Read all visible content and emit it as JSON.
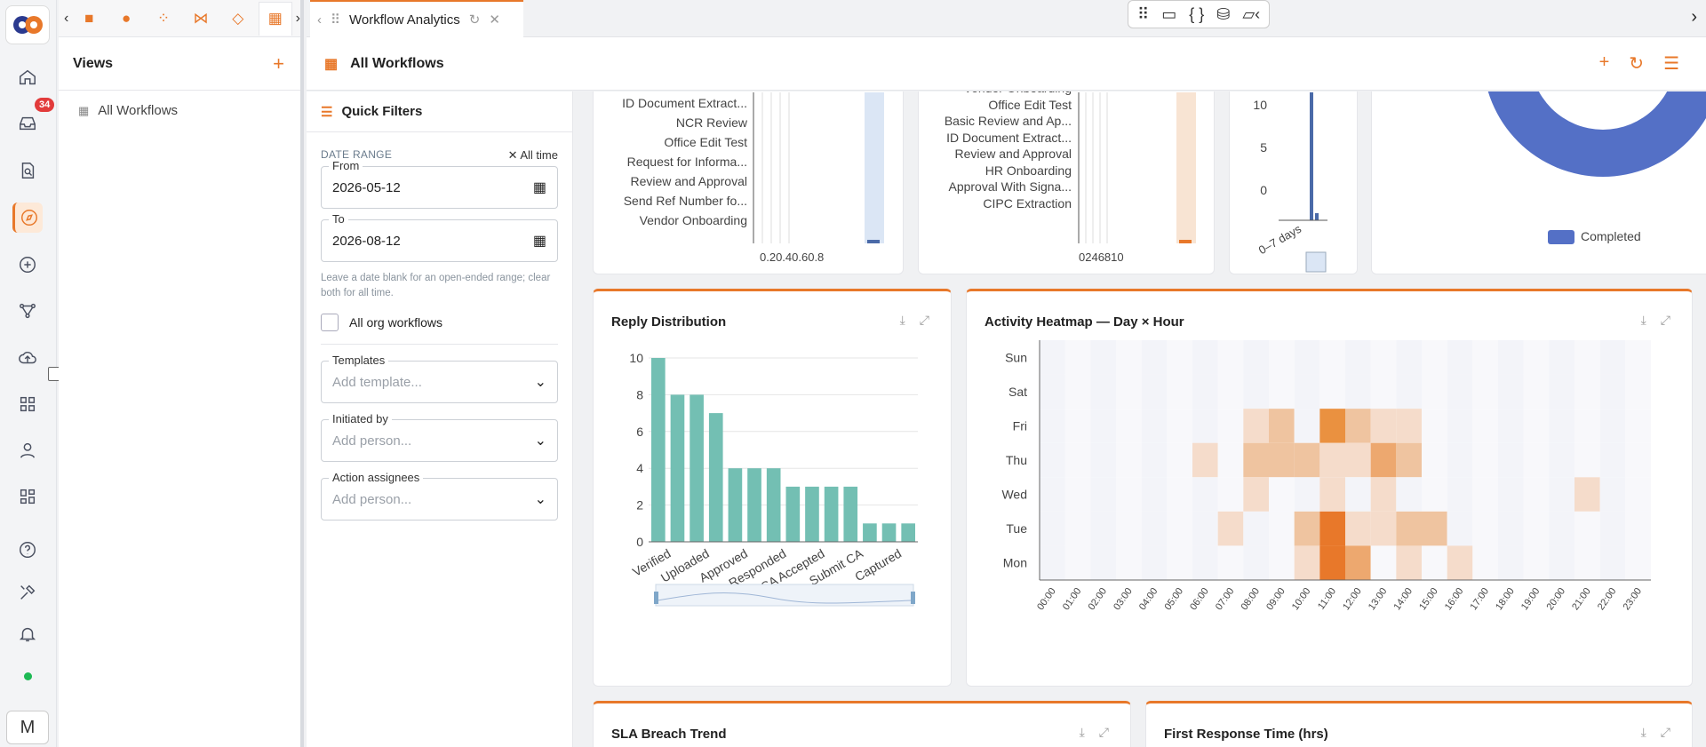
{
  "rail": {
    "badge_count": "34",
    "avatar_initial": "M"
  },
  "views": {
    "title": "Views",
    "items": [
      {
        "label": "All Workflows"
      }
    ]
  },
  "tab": {
    "label": "Workflow Analytics"
  },
  "page": {
    "title": "All Workflows"
  },
  "filters": {
    "title": "Quick Filters",
    "date_range_label": "DATE RANGE",
    "all_time_label": "All time",
    "from_label": "From",
    "from_value": "2026-05-12",
    "to_label": "To",
    "to_value": "2026-08-12",
    "hint": "Leave a date blank for an open-ended range; clear both for all time.",
    "all_org_label": "All org workflows",
    "templates_label": "Templates",
    "templates_placeholder": "Add template...",
    "initiated_label": "Initiated by",
    "initiated_placeholder": "Add person...",
    "assignees_label": "Action assignees",
    "assignees_placeholder": "Add person..."
  },
  "top_charts": {
    "left_labels": [
      "ID Document Extract...",
      "NCR Review",
      "Office Edit Test",
      "Request for Informa...",
      "Review and Approval",
      "Send Ref Number fo...",
      "Vendor Onboarding"
    ],
    "left_ticks": "0.20.40.60.8",
    "mid_labels": [
      "Vendor Onboarding",
      "Office Edit Test",
      "Basic Review and Ap...",
      "ID Document Extract...",
      "Review and Approval",
      "HR Onboarding",
      "Approval With Signa...",
      "CIPC Extraction"
    ],
    "mid_ticks": "0246810",
    "small_ticks": [
      "10",
      "5",
      "0"
    ],
    "small_cat": "0–7 days",
    "legend_completed": "Completed"
  },
  "reply": {
    "title": "Reply Distribution",
    "y_ticks": [
      "10",
      "8",
      "6",
      "4",
      "2",
      "0"
    ],
    "x_labels": [
      "Verified",
      "Uploaded",
      "Approved",
      "Responded",
      "CA Accepted",
      "Submit CA",
      "Captured"
    ]
  },
  "heatmap": {
    "title": "Activity Heatmap — Day × Hour",
    "days": [
      "Sun",
      "Sat",
      "Fri",
      "Thu",
      "Wed",
      "Tue",
      "Mon"
    ],
    "hours": [
      "00:00",
      "01:00",
      "02:00",
      "03:00",
      "04:00",
      "05:00",
      "06:00",
      "07:00",
      "08:00",
      "09:00",
      "10:00",
      "11:00",
      "12:00",
      "13:00",
      "14:00",
      "15:00",
      "16:00",
      "17:00",
      "18:00",
      "19:00",
      "20:00",
      "21:00",
      "22:00",
      "23:00"
    ]
  },
  "sla": {
    "title": "SLA Breach Trend"
  },
  "frt": {
    "title": "First Response Time (hrs)"
  },
  "chart_data": [
    {
      "type": "bar",
      "title": "Reply Distribution",
      "values": [
        10,
        8,
        8,
        7,
        4,
        4,
        4,
        3,
        3,
        3,
        3,
        1,
        1,
        1
      ],
      "ylim": [
        0,
        10
      ],
      "color": "#73bfb3"
    },
    {
      "type": "heatmap",
      "title": "Activity Heatmap — Day × Hour",
      "rows": [
        "Sun",
        "Sat",
        "Fri",
        "Thu",
        "Wed",
        "Tue",
        "Mon"
      ],
      "values": [
        [
          0,
          0,
          0,
          0,
          0,
          0,
          0,
          0,
          0,
          0,
          0,
          0,
          0,
          0,
          0,
          0,
          0,
          0,
          0,
          0,
          0,
          0,
          0,
          0
        ],
        [
          0,
          0,
          0,
          0,
          0,
          0,
          0,
          0,
          0,
          0,
          0,
          0,
          0,
          0,
          0,
          0,
          0,
          0,
          0,
          0,
          0,
          0,
          0,
          0
        ],
        [
          0,
          0,
          0,
          0,
          0,
          0,
          0,
          0,
          1,
          2,
          0,
          4,
          2,
          1,
          1,
          0,
          0,
          0,
          0,
          0,
          0,
          0,
          0,
          0
        ],
        [
          0,
          0,
          0,
          0,
          0,
          0,
          1,
          0,
          2,
          2,
          2,
          1,
          1,
          3,
          2,
          0,
          0,
          0,
          0,
          0,
          0,
          0,
          0,
          0
        ],
        [
          0,
          0,
          0,
          0,
          0,
          0,
          0,
          0,
          1,
          0,
          0,
          1,
          0,
          1,
          0,
          0,
          0,
          0,
          0,
          0,
          0,
          1,
          0,
          0
        ],
        [
          0,
          0,
          0,
          0,
          0,
          0,
          0,
          1,
          0,
          0,
          2,
          5,
          1,
          1,
          2,
          2,
          0,
          0,
          0,
          0,
          0,
          0,
          0,
          0
        ],
        [
          0,
          0,
          0,
          0,
          0,
          0,
          0,
          0,
          0,
          0,
          1,
          5,
          3,
          0,
          1,
          0,
          1,
          0,
          0,
          0,
          0,
          0,
          0,
          0
        ]
      ]
    }
  ]
}
